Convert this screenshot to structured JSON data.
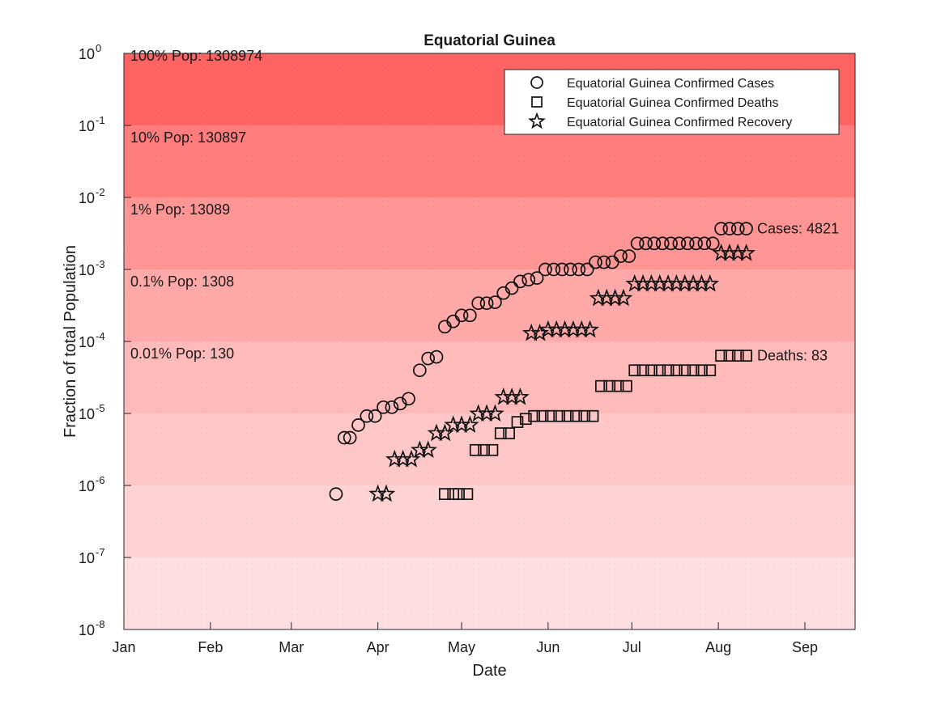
{
  "chart_data": {
    "type": "scatter",
    "title": "Equatorial Guinea",
    "xlabel": "Date",
    "ylabel": "Fraction of total Population",
    "y_scale": "log",
    "ylim": [
      1e-08,
      1
    ],
    "xlim": [
      "Jan 1",
      "Sep 19"
    ],
    "x_ticks": [
      {
        "label": "Jan",
        "date": "Jan 1"
      },
      {
        "label": "Feb",
        "date": "Feb 1"
      },
      {
        "label": "Mar",
        "date": "Mar 1"
      },
      {
        "label": "Apr",
        "date": "Apr 1"
      },
      {
        "label": "May",
        "date": "May 1"
      },
      {
        "label": "Jun",
        "date": "Jun 1"
      },
      {
        "label": "Jul",
        "date": "Jul 1"
      },
      {
        "label": "Aug",
        "date": "Aug 1"
      },
      {
        "label": "Sep",
        "date": "Sep 1"
      }
    ],
    "y_ticks": [
      {
        "base": "10",
        "exp": "0",
        "value": 1
      },
      {
        "base": "10",
        "exp": "-1",
        "value": 0.1
      },
      {
        "base": "10",
        "exp": "-2",
        "value": 0.01
      },
      {
        "base": "10",
        "exp": "-3",
        "value": 0.001
      },
      {
        "base": "10",
        "exp": "-4",
        "value": 0.0001
      },
      {
        "base": "10",
        "exp": "-5",
        "value": 1e-05
      },
      {
        "base": "10",
        "exp": "-6",
        "value": 1e-06
      },
      {
        "base": "10",
        "exp": "-7",
        "value": 1e-07
      },
      {
        "base": "10",
        "exp": "-8",
        "value": 1e-08
      }
    ],
    "bands": [
      {
        "from": 0.1,
        "to": 1,
        "color": "#ff6464",
        "label": "100% Pop: 1308974"
      },
      {
        "from": 0.01,
        "to": 0.1,
        "color": "#ff7d7d",
        "label": "10% Pop: 130897"
      },
      {
        "from": 0.001,
        "to": 0.01,
        "color": "#ff9696",
        "label": "1% Pop: 13089"
      },
      {
        "from": 0.0001,
        "to": 0.001,
        "color": "#ffa9a9",
        "label": "0.1% Pop: 1308"
      },
      {
        "from": 1e-05,
        "to": 0.0001,
        "color": "#ffbaba",
        "label": "0.01% Pop: 130"
      },
      {
        "from": 1e-06,
        "to": 1e-05,
        "color": "#ffc7c7",
        "label": ""
      },
      {
        "from": 1e-07,
        "to": 1e-06,
        "color": "#ffd3d3",
        "label": ""
      },
      {
        "from": 1e-08,
        "to": 1e-07,
        "color": "#ffdfe2",
        "label": ""
      }
    ],
    "legend": {
      "position": "top-right",
      "entries": [
        {
          "marker": "circle",
          "text": "Equatorial Guinea Confirmed Cases"
        },
        {
          "marker": "square",
          "text": "Equatorial Guinea Confirmed Deaths"
        },
        {
          "marker": "star",
          "text": "Equatorial Guinea Confirmed Recovery"
        }
      ]
    },
    "end_labels": {
      "cases": {
        "text": "Cases: 4821",
        "date": "Aug 12",
        "value": 0.00368
      },
      "deaths": {
        "text": "Deaths: 83",
        "date": "Aug 12",
        "value": 6.34e-05
      }
    },
    "series": [
      {
        "name": "Equatorial Guinea Confirmed Cases",
        "marker": "circle",
        "points": [
          [
            "Mar 17",
            7.6e-07
          ],
          [
            "Mar 20",
            4.6e-06
          ],
          [
            "Mar 22",
            4.6e-06
          ],
          [
            "Mar 25",
            6.9e-06
          ],
          [
            "Mar 28",
            9.2e-06
          ],
          [
            "Mar 31",
            9.2e-06
          ],
          [
            "Apr 3",
            1.22e-05
          ],
          [
            "Apr 6",
            1.22e-05
          ],
          [
            "Apr 9",
            1.37e-05
          ],
          [
            "Apr 12",
            1.6e-05
          ],
          [
            "Apr 16",
            3.97e-05
          ],
          [
            "Apr 19",
            5.8e-05
          ],
          [
            "Apr 22",
            6.1e-05
          ],
          [
            "Apr 25",
            0.00016
          ],
          [
            "Apr 28",
            0.00019
          ],
          [
            "May 1",
            0.00023
          ],
          [
            "May 4",
            0.00023
          ],
          [
            "May 7",
            0.00034
          ],
          [
            "May 10",
            0.00034
          ],
          [
            "May 13",
            0.00035
          ],
          [
            "May 16",
            0.00047
          ],
          [
            "May 19",
            0.00055
          ],
          [
            "May 22",
            0.00068
          ],
          [
            "May 25",
            0.00072
          ],
          [
            "May 28",
            0.00076
          ],
          [
            "May 31",
            0.001
          ],
          [
            "Jun 3",
            0.001
          ],
          [
            "Jun 6",
            0.001
          ],
          [
            "Jun 9",
            0.001
          ],
          [
            "Jun 12",
            0.001
          ],
          [
            "Jun 15",
            0.001
          ],
          [
            "Jun 18",
            0.00126
          ],
          [
            "Jun 21",
            0.00126
          ],
          [
            "Jun 24",
            0.00126
          ],
          [
            "Jun 27",
            0.00153
          ],
          [
            "Jun 30",
            0.00153
          ],
          [
            "Jul 3",
            0.0023
          ],
          [
            "Jul 6",
            0.0023
          ],
          [
            "Jul 9",
            0.0023
          ],
          [
            "Jul 12",
            0.0023
          ],
          [
            "Jul 15",
            0.0023
          ],
          [
            "Jul 18",
            0.0023
          ],
          [
            "Jul 21",
            0.0023
          ],
          [
            "Jul 24",
            0.0023
          ],
          [
            "Jul 27",
            0.0023
          ],
          [
            "Jul 30",
            0.0023
          ],
          [
            "Aug 2",
            0.00368
          ],
          [
            "Aug 5",
            0.00368
          ],
          [
            "Aug 8",
            0.00368
          ],
          [
            "Aug 11",
            0.00368
          ]
        ]
      },
      {
        "name": "Equatorial Guinea Confirmed Deaths",
        "marker": "square",
        "points": [
          [
            "Apr 25",
            7.6e-07
          ],
          [
            "Apr 28",
            7.6e-07
          ],
          [
            "Apr 30",
            7.6e-07
          ],
          [
            "May 3",
            7.6e-07
          ],
          [
            "May 6",
            3.1e-06
          ],
          [
            "May 9",
            3.1e-06
          ],
          [
            "May 12",
            3.1e-06
          ],
          [
            "May 15",
            5.3e-06
          ],
          [
            "May 18",
            5.3e-06
          ],
          [
            "May 21",
            7.6e-06
          ],
          [
            "May 24",
            8.4e-06
          ],
          [
            "May 27",
            9.2e-06
          ],
          [
            "May 30",
            9.2e-06
          ],
          [
            "Jun 2",
            9.2e-06
          ],
          [
            "Jun 5",
            9.2e-06
          ],
          [
            "Jun 8",
            9.2e-06
          ],
          [
            "Jun 11",
            9.2e-06
          ],
          [
            "Jun 14",
            9.2e-06
          ],
          [
            "Jun 17",
            9.2e-06
          ],
          [
            "Jun 20",
            2.4e-05
          ],
          [
            "Jun 23",
            2.4e-05
          ],
          [
            "Jun 26",
            2.4e-05
          ],
          [
            "Jun 29",
            2.4e-05
          ],
          [
            "Jul 2",
            3.97e-05
          ],
          [
            "Jul 5",
            3.97e-05
          ],
          [
            "Jul 8",
            3.97e-05
          ],
          [
            "Jul 11",
            3.97e-05
          ],
          [
            "Jul 14",
            3.97e-05
          ],
          [
            "Jul 17",
            3.97e-05
          ],
          [
            "Jul 20",
            3.97e-05
          ],
          [
            "Jul 23",
            3.97e-05
          ],
          [
            "Jul 26",
            3.97e-05
          ],
          [
            "Jul 29",
            3.97e-05
          ],
          [
            "Aug 2",
            6.34e-05
          ],
          [
            "Aug 5",
            6.34e-05
          ],
          [
            "Aug 8",
            6.34e-05
          ],
          [
            "Aug 11",
            6.34e-05
          ]
        ]
      },
      {
        "name": "Equatorial Guinea Confirmed Recovery",
        "marker": "star",
        "points": [
          [
            "Apr 1",
            7.6e-07
          ],
          [
            "Apr 4",
            7.6e-07
          ],
          [
            "Apr 7",
            2.3e-06
          ],
          [
            "Apr 10",
            2.3e-06
          ],
          [
            "Apr 13",
            2.3e-06
          ],
          [
            "Apr 16",
            3.1e-06
          ],
          [
            "Apr 19",
            3.1e-06
          ],
          [
            "Apr 22",
            5.3e-06
          ],
          [
            "Apr 25",
            5.3e-06
          ],
          [
            "Apr 28",
            6.9e-06
          ],
          [
            "May 1",
            6.9e-06
          ],
          [
            "May 4",
            6.9e-06
          ],
          [
            "May 7",
            9.9e-06
          ],
          [
            "May 10",
            9.9e-06
          ],
          [
            "May 13",
            9.9e-06
          ],
          [
            "May 16",
            1.68e-05
          ],
          [
            "May 19",
            1.68e-05
          ],
          [
            "May 22",
            1.68e-05
          ],
          [
            "May 26",
            0.00013
          ],
          [
            "May 29",
            0.00013
          ],
          [
            "Jun 1",
            0.000145
          ],
          [
            "Jun 4",
            0.000145
          ],
          [
            "Jun 7",
            0.000145
          ],
          [
            "Jun 10",
            0.000145
          ],
          [
            "Jun 13",
            0.000145
          ],
          [
            "Jun 16",
            0.000145
          ],
          [
            "Jun 19",
            0.000397
          ],
          [
            "Jun 22",
            0.000397
          ],
          [
            "Jun 25",
            0.000397
          ],
          [
            "Jun 28",
            0.000397
          ],
          [
            "Jul 2",
            0.00063
          ],
          [
            "Jul 5",
            0.00063
          ],
          [
            "Jul 8",
            0.00063
          ],
          [
            "Jul 11",
            0.00063
          ],
          [
            "Jul 14",
            0.00063
          ],
          [
            "Jul 17",
            0.00063
          ],
          [
            "Jul 20",
            0.00063
          ],
          [
            "Jul 23",
            0.00063
          ],
          [
            "Jul 26",
            0.00063
          ],
          [
            "Jul 29",
            0.00063
          ],
          [
            "Aug 2",
            0.00168
          ],
          [
            "Aug 5",
            0.00168
          ],
          [
            "Aug 8",
            0.00168
          ],
          [
            "Aug 11",
            0.00168
          ]
        ]
      }
    ]
  }
}
